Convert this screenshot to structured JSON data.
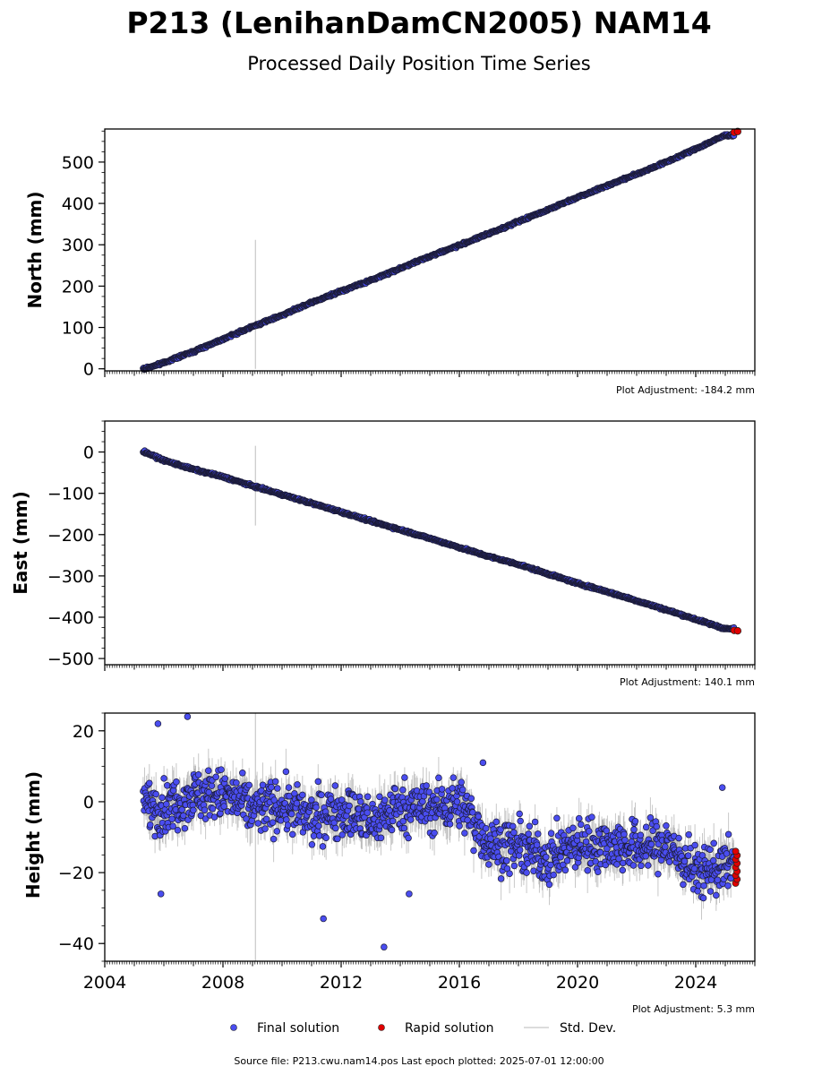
{
  "header": {
    "title": "P213 (LenihanDamCN2005) NAM14",
    "subtitle": "Processed Daily Position Time Series"
  },
  "chart_data": [
    {
      "type": "scatter",
      "component": "north",
      "ylabel": "North (mm)",
      "xlim": [
        2004.0,
        2026.0
      ],
      "ylim": [
        -5,
        580
      ],
      "yticks": [
        0,
        100,
        200,
        300,
        400,
        500
      ],
      "x_ticks": [
        "2004",
        "2008",
        "2012",
        "2016",
        "2020",
        "2024"
      ],
      "plot_adjustment": "Plot Adjustment: -184.2 mm",
      "series": [
        {
          "name": "Final solution",
          "x": [
            2005.35,
            2006.0,
            2007.0,
            2008.0,
            2009.0,
            2010.0,
            2011.0,
            2012.0,
            2013.0,
            2014.0,
            2015.0,
            2016.0,
            2017.0,
            2018.0,
            2019.0,
            2020.0,
            2021.0,
            2022.0,
            2023.0,
            2024.0,
            2025.0
          ],
          "y": [
            0,
            15,
            42,
            72,
            102,
            130,
            160,
            188,
            214,
            243,
            272,
            299,
            327,
            356,
            385,
            415,
            443,
            471,
            500,
            532,
            565
          ]
        },
        {
          "name": "Rapid solution",
          "x": [
            2025.3,
            2025.42
          ],
          "y": [
            572,
            574
          ]
        }
      ],
      "std_dev_outlier": {
        "x": 2009.1,
        "y_low": 0,
        "y_high": 312
      }
    },
    {
      "type": "scatter",
      "component": "east",
      "ylabel": "East (mm)",
      "xlim": [
        2004.0,
        2026.0
      ],
      "ylim": [
        -515,
        75
      ],
      "yticks": [
        0,
        -100,
        -200,
        -300,
        -400,
        -500
      ],
      "x_ticks": [
        "2004",
        "2008",
        "2012",
        "2016",
        "2020",
        "2024"
      ],
      "plot_adjustment": "Plot Adjustment: 140.1 mm",
      "series": [
        {
          "name": "Final solution",
          "x": [
            2005.35,
            2006.0,
            2007.0,
            2008.0,
            2009.0,
            2010.0,
            2011.0,
            2012.0,
            2013.0,
            2014.0,
            2015.0,
            2016.0,
            2017.0,
            2018.0,
            2019.0,
            2020.0,
            2021.0,
            2022.0,
            2023.0,
            2024.0,
            2025.0
          ],
          "y": [
            0,
            -20,
            -42,
            -60,
            -82,
            -103,
            -124,
            -145,
            -167,
            -188,
            -209,
            -231,
            -253,
            -272,
            -295,
            -318,
            -338,
            -360,
            -382,
            -405,
            -428
          ]
        },
        {
          "name": "Rapid solution",
          "x": [
            2025.3,
            2025.42
          ],
          "y": [
            -432,
            -433
          ]
        }
      ],
      "std_dev_outlier": {
        "x": 2009.1,
        "y_low": -178,
        "y_high": 15
      }
    },
    {
      "type": "scatter",
      "component": "height",
      "ylabel": "Height (mm)",
      "xlim": [
        2004.0,
        2026.0
      ],
      "ylim": [
        -45,
        25
      ],
      "yticks": [
        20,
        0,
        -20,
        -40
      ],
      "x_ticks": [
        "2004",
        "2008",
        "2012",
        "2016",
        "2020",
        "2024"
      ],
      "plot_adjustment": "Plot Adjustment: 5.3 mm",
      "series": [
        {
          "name": "Final solution",
          "trend_x": [
            2005.3,
            2006.0,
            2007.0,
            2008.0,
            2009.0,
            2010.0,
            2011.0,
            2012.0,
            2013.0,
            2014.0,
            2015.0,
            2016.0,
            2017.0,
            2018.0,
            2019.0,
            2020.0,
            2021.0,
            2022.0,
            2023.0,
            2024.0,
            2025.0
          ],
          "trend_y": [
            0,
            -2,
            2,
            2,
            -2,
            -1,
            -5,
            -2,
            -6,
            -1,
            -2,
            0,
            -12,
            -13,
            -16,
            -12,
            -12,
            -13,
            -12,
            -20,
            -18
          ],
          "outliers": [
            [
              2005.8,
              22
            ],
            [
              2006.8,
              24
            ],
            [
              2013.45,
              -41
            ],
            [
              2011.4,
              -33
            ],
            [
              2014.3,
              -26
            ],
            [
              2016.8,
              11
            ],
            [
              2024.9,
              4
            ],
            [
              2005.9,
              -26
            ]
          ]
        },
        {
          "name": "Rapid solution",
          "x": [
            2025.35,
            2025.4
          ],
          "y_range": [
            -23,
            -14
          ]
        }
      ]
    }
  ],
  "legend": {
    "final_label": "Final solution",
    "rapid_label": "Rapid solution",
    "std_label": "Std. Dev.",
    "final_color": "#4a4df0",
    "rapid_color": "#e00000",
    "std_color": "#c8c8c8"
  },
  "footer": {
    "source": "Source file: P213.cwu.nam14.pos  Last epoch plotted: 2025-07-01 12:00:00"
  }
}
